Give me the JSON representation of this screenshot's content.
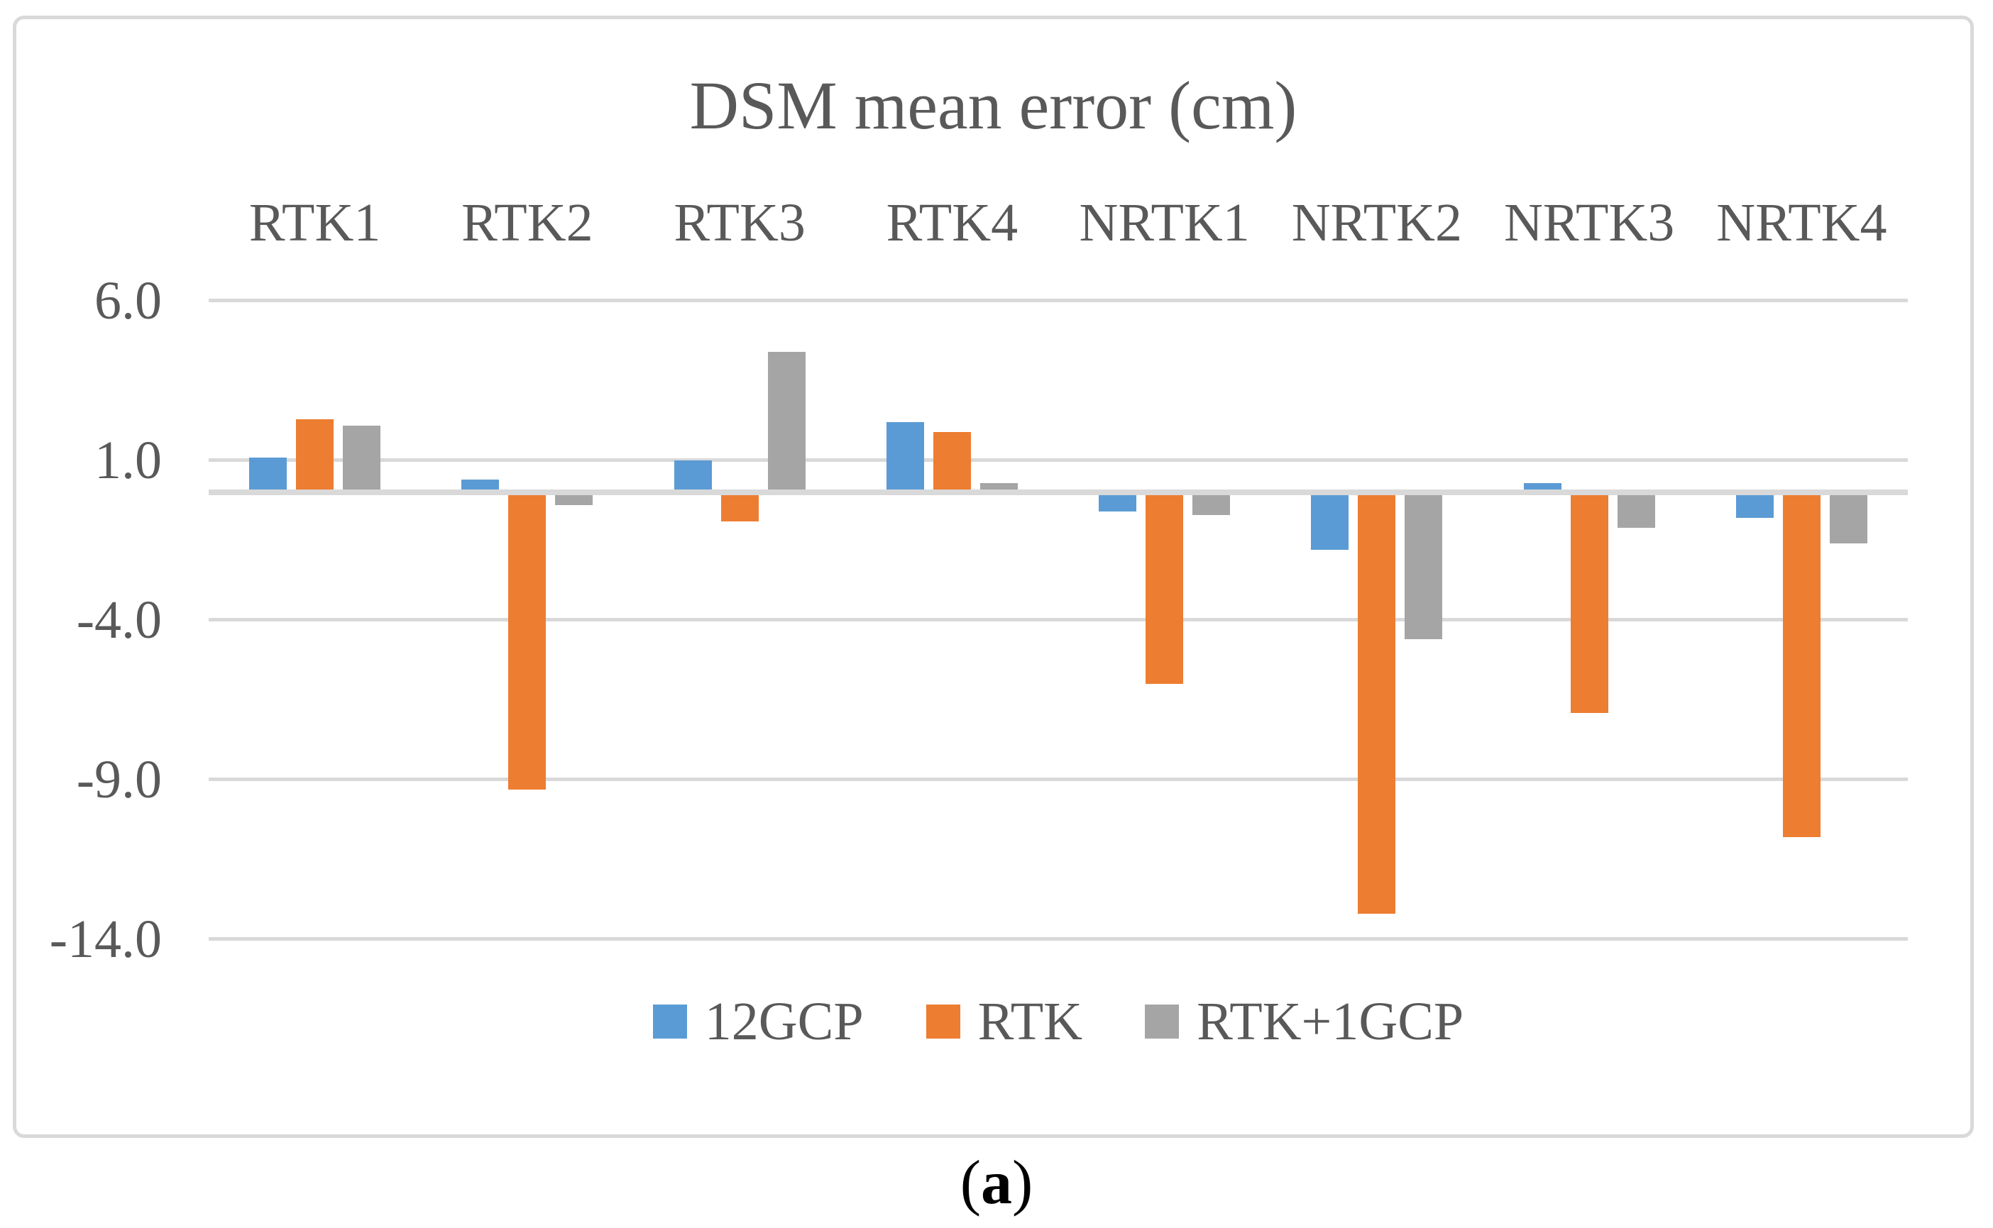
{
  "chart_data": {
    "type": "bar",
    "title": "DSM mean error (cm)",
    "categories": [
      "RTK1",
      "RTK2",
      "RTK3",
      "RTK4",
      "NRTK1",
      "NRTK2",
      "NRTK3",
      "NRTK4"
    ],
    "series": [
      {
        "name": "12GCP",
        "color": "#5B9BD5",
        "values": [
          1.1,
          0.4,
          1.0,
          2.2,
          -0.6,
          -1.8,
          0.3,
          -0.8
        ]
      },
      {
        "name": "RTK",
        "color": "#ED7D31",
        "values": [
          2.3,
          -9.3,
          -0.9,
          1.9,
          -6.0,
          -13.2,
          -6.9,
          -10.8
        ]
      },
      {
        "name": "RTK+1GCP",
        "color": "#A5A5A5",
        "values": [
          2.1,
          -0.4,
          4.4,
          0.3,
          -0.7,
          -4.6,
          -1.1,
          -1.6
        ]
      }
    ],
    "y_axis": {
      "ticks": [
        {
          "label": "6.0",
          "value": 6
        },
        {
          "label": "1.0",
          "value": 1
        },
        {
          "label": "-4.0",
          "value": -4
        },
        {
          "label": "-9.0",
          "value": -9
        },
        {
          "label": "-14.0",
          "value": -14
        }
      ],
      "range": [
        -16,
        7.5
      ]
    },
    "grid": "horizontal-only",
    "legend_position": "bottom",
    "ylabel": "",
    "xlabel": ""
  },
  "caption": {
    "prefix": "(",
    "letter": "a",
    "suffix": ")"
  },
  "colors": {
    "text": "#595959",
    "gridline": "#D9D9D9",
    "frame_border": "#D9D9D9",
    "background": "#FFFFFF",
    "caption": "#000000",
    "series_blue": "#5B9BD5",
    "series_orange": "#ED7D31",
    "series_gray": "#A5A5A5"
  }
}
